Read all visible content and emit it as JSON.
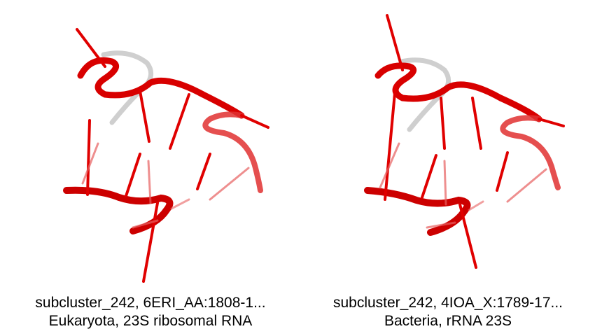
{
  "structures": [
    {
      "caption_line1": "subcluster_242, 6ERI_AA:1808-1...",
      "caption_line2": "Eukaryota, 23S ribosomal RNA"
    },
    {
      "caption_line1": "subcluster_242, 4IOA_X:1789-17...",
      "caption_line2": "Bacteria, rRNA 23S"
    }
  ],
  "colors": {
    "backbone": "#e00000",
    "backbone_highlight": "#ff4040",
    "loop": "#c8c8c8",
    "base_faded": "#e86060"
  }
}
